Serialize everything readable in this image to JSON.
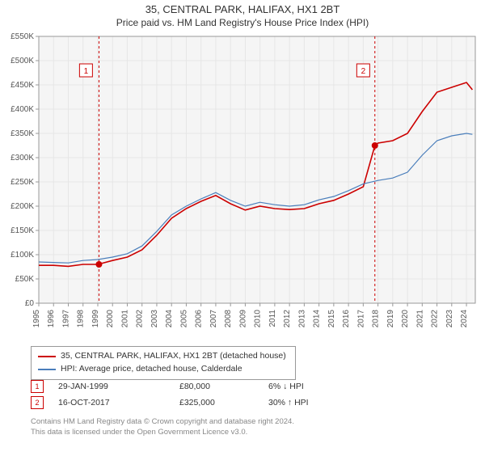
{
  "title_main": "35, CENTRAL PARK, HALIFAX, HX1 2BT",
  "title_sub": "Price paid vs. HM Land Registry's House Price Index (HPI)",
  "chart": {
    "type": "line",
    "plot_bg": "#f5f5f5",
    "page_bg": "#ffffff",
    "grid_color": "#e6e6e6",
    "axis_color": "#999999",
    "x_years": [
      1995,
      1996,
      1997,
      1998,
      1999,
      2000,
      2001,
      2002,
      2003,
      2004,
      2005,
      2006,
      2007,
      2008,
      2009,
      2010,
      2011,
      2012,
      2013,
      2014,
      2015,
      2016,
      2017,
      2018,
      2019,
      2020,
      2021,
      2022,
      2023,
      2024
    ],
    "ylim": [
      0,
      550000
    ],
    "ytick_step": 50000,
    "ytick_prefix": "£",
    "ytick_suffix": "K",
    "series": [
      {
        "name": "property",
        "label": "35, CENTRAL PARK, HALIFAX, HX1 2BT (detached house)",
        "color": "#cc0000",
        "width": 1.6,
        "values_by_year": {
          "1995": 78000,
          "1996": 78000,
          "1997": 76000,
          "1998": 80000,
          "1999": 80000,
          "2000": 88000,
          "2001": 95000,
          "2002": 110000,
          "2003": 140000,
          "2004": 175000,
          "2005": 195000,
          "2006": 210000,
          "2007": 222000,
          "2008": 205000,
          "2009": 192000,
          "2010": 200000,
          "2011": 195000,
          "2012": 193000,
          "2013": 195000,
          "2014": 205000,
          "2015": 212000,
          "2016": 225000,
          "2017": 240000,
          "2017.79": 325000,
          "2018": 330000,
          "2019": 335000,
          "2020": 350000,
          "2021": 395000,
          "2022": 435000,
          "2023": 445000,
          "2024": 455000,
          "2024.4": 440000
        }
      },
      {
        "name": "hpi",
        "label": "HPI: Average price, detached house, Calderdale",
        "color": "#4a7ebb",
        "width": 1.2,
        "values_by_year": {
          "1995": 85000,
          "1996": 84000,
          "1997": 83000,
          "1998": 88000,
          "1999": 90000,
          "2000": 95000,
          "2001": 102000,
          "2002": 118000,
          "2003": 148000,
          "2004": 182000,
          "2005": 200000,
          "2006": 215000,
          "2007": 228000,
          "2008": 212000,
          "2009": 200000,
          "2010": 208000,
          "2011": 203000,
          "2012": 200000,
          "2013": 203000,
          "2014": 213000,
          "2015": 220000,
          "2016": 232000,
          "2017": 246000,
          "2018": 253000,
          "2019": 258000,
          "2020": 270000,
          "2021": 305000,
          "2022": 335000,
          "2023": 345000,
          "2024": 350000,
          "2024.4": 348000
        }
      }
    ],
    "markers": [
      {
        "id": "1",
        "year": 1999.08,
        "price": 80000,
        "box_year": 1998.2,
        "box_y": 480000
      },
      {
        "id": "2",
        "year": 2017.79,
        "price": 325000,
        "box_year": 2017.0,
        "box_y": 480000
      }
    ],
    "marker_line_color": "#cc0000",
    "marker_line_dash": "3,3",
    "marker_dot_color": "#cc0000",
    "marker_box_border": "#cc0000",
    "marker_box_text": "#cc0000"
  },
  "legend": {
    "items": [
      {
        "color": "#cc0000",
        "label": "35, CENTRAL PARK, HALIFAX, HX1 2BT (detached house)"
      },
      {
        "color": "#4a7ebb",
        "label": "HPI: Average price, detached house, Calderdale"
      }
    ]
  },
  "sales": [
    {
      "id": "1",
      "date": "29-JAN-1999",
      "price": "£80,000",
      "diff": "6% ↓ HPI"
    },
    {
      "id": "2",
      "date": "16-OCT-2017",
      "price": "£325,000",
      "diff": "30% ↑ HPI"
    }
  ],
  "footer_line1": "Contains HM Land Registry data © Crown copyright and database right 2024.",
  "footer_line2": "This data is licensed under the Open Government Licence v3.0."
}
